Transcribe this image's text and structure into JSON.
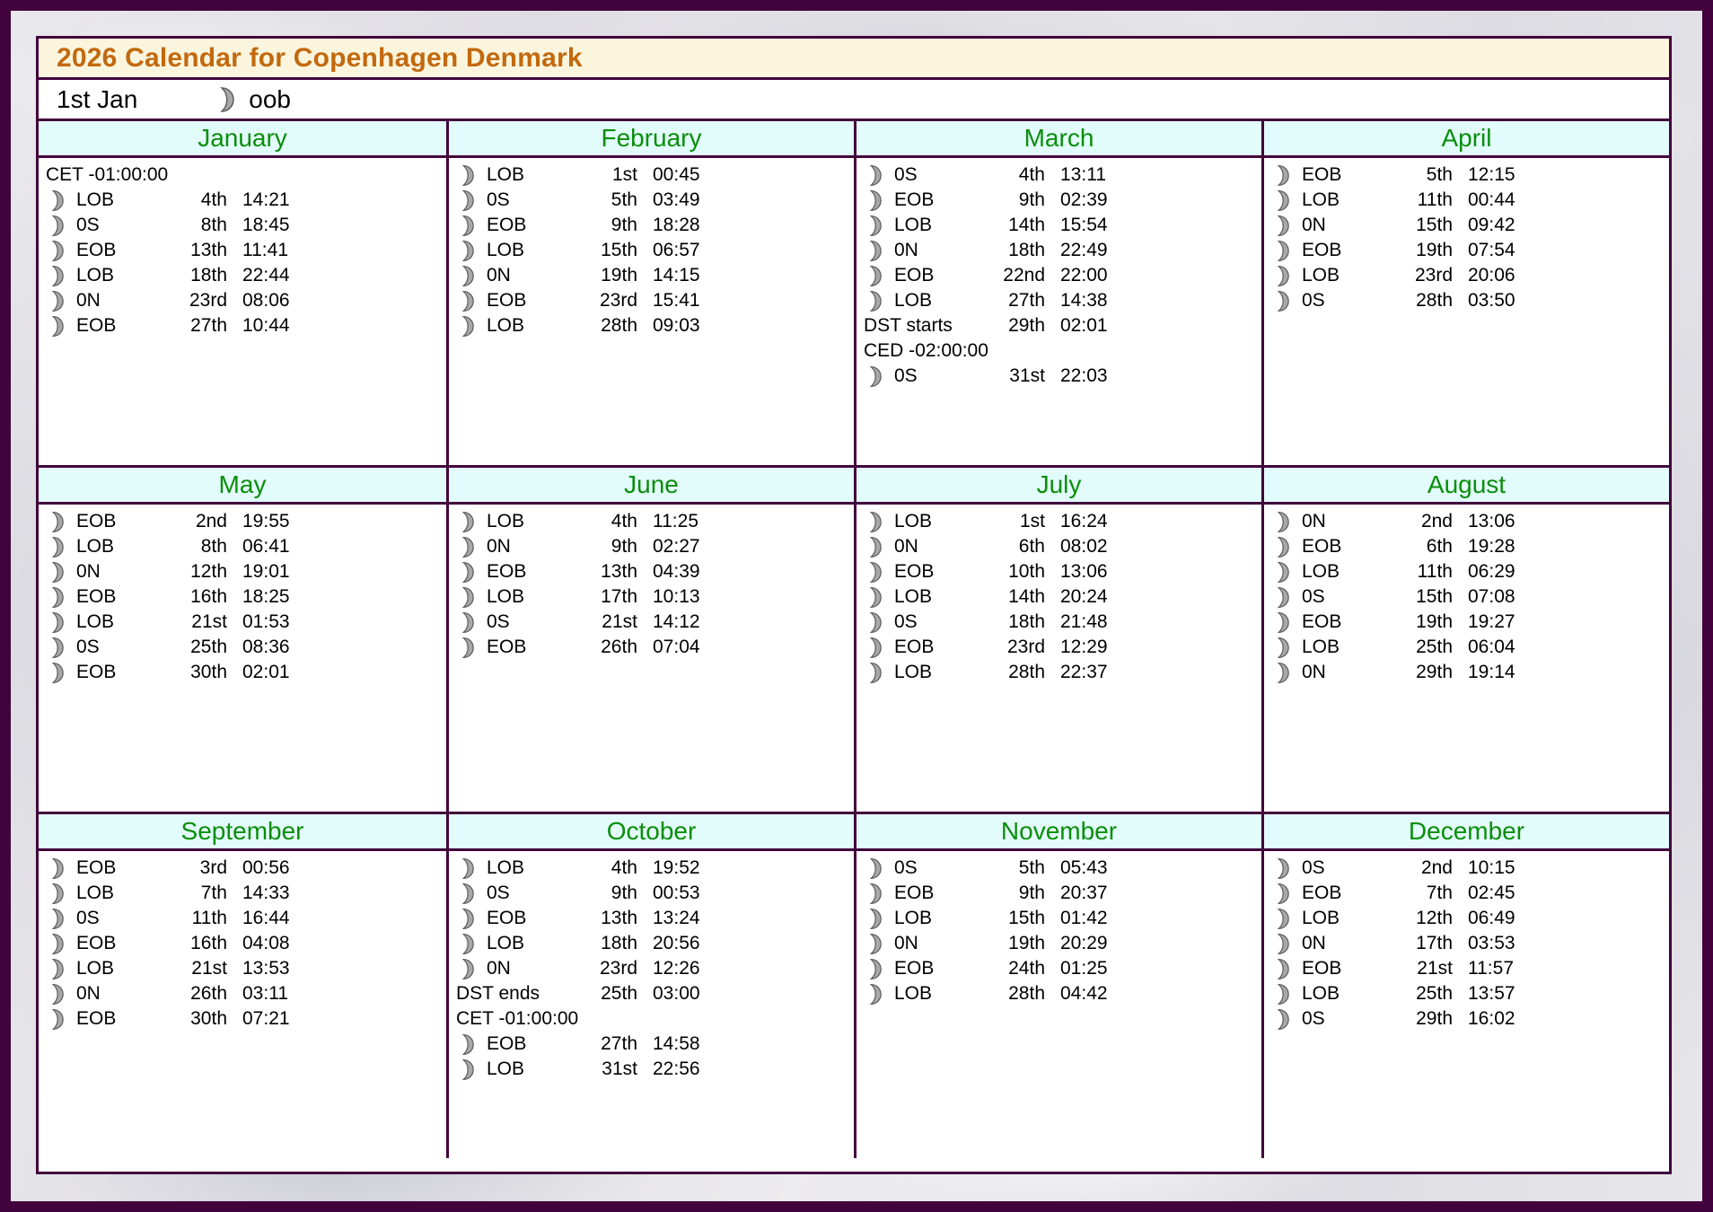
{
  "page": {
    "title": "2026 Calendar for Copenhagen Denmark",
    "subtitle": {
      "date": "1st Jan",
      "icon": "moon-icon",
      "text": "oob"
    }
  },
  "colors": {
    "purple": "#42033d",
    "title_bg": "#fcf5dd",
    "title_color": "#c2690f",
    "header_bg": "#e2fbfb",
    "month_green": "#0a8e0a",
    "moon_fill": "#a8a8a8",
    "moon_stroke": "#5f5f5f",
    "text": "#000000"
  },
  "months": [
    {
      "name": "January",
      "events": [
        {
          "type": "note",
          "label": "CET -01:00:00"
        },
        {
          "type": "moon",
          "label": "LOB",
          "date": "4th",
          "time": "14:21"
        },
        {
          "type": "moon",
          "label": "0S",
          "date": "8th",
          "time": "18:45"
        },
        {
          "type": "moon",
          "label": "EOB",
          "date": "13th",
          "time": "11:41"
        },
        {
          "type": "moon",
          "label": "LOB",
          "date": "18th",
          "time": "22:44"
        },
        {
          "type": "moon",
          "label": "0N",
          "date": "23rd",
          "time": "08:06"
        },
        {
          "type": "moon",
          "label": "EOB",
          "date": "27th",
          "time": "10:44"
        }
      ]
    },
    {
      "name": "February",
      "events": [
        {
          "type": "moon",
          "label": "LOB",
          "date": "1st",
          "time": "00:45"
        },
        {
          "type": "moon",
          "label": "0S",
          "date": "5th",
          "time": "03:49"
        },
        {
          "type": "moon",
          "label": "EOB",
          "date": "9th",
          "time": "18:28"
        },
        {
          "type": "moon",
          "label": "LOB",
          "date": "15th",
          "time": "06:57"
        },
        {
          "type": "moon",
          "label": "0N",
          "date": "19th",
          "time": "14:15"
        },
        {
          "type": "moon",
          "label": "EOB",
          "date": "23rd",
          "time": "15:41"
        },
        {
          "type": "moon",
          "label": "LOB",
          "date": "28th",
          "time": "09:03"
        }
      ]
    },
    {
      "name": "March",
      "events": [
        {
          "type": "moon",
          "label": "0S",
          "date": "4th",
          "time": "13:11"
        },
        {
          "type": "moon",
          "label": "EOB",
          "date": "9th",
          "time": "02:39"
        },
        {
          "type": "moon",
          "label": "LOB",
          "date": "14th",
          "time": "15:54"
        },
        {
          "type": "moon",
          "label": "0N",
          "date": "18th",
          "time": "22:49"
        },
        {
          "type": "moon",
          "label": "EOB",
          "date": "22nd",
          "time": "22:00"
        },
        {
          "type": "moon",
          "label": "LOB",
          "date": "27th",
          "time": "14:38"
        },
        {
          "type": "dst",
          "label": "DST starts",
          "date": "29th",
          "time": "02:01"
        },
        {
          "type": "note",
          "label": "CED -02:00:00"
        },
        {
          "type": "moon",
          "label": "0S",
          "date": "31st",
          "time": "22:03"
        }
      ]
    },
    {
      "name": "April",
      "events": [
        {
          "type": "moon",
          "label": "EOB",
          "date": "5th",
          "time": "12:15"
        },
        {
          "type": "moon",
          "label": "LOB",
          "date": "11th",
          "time": "00:44"
        },
        {
          "type": "moon",
          "label": "0N",
          "date": "15th",
          "time": "09:42"
        },
        {
          "type": "moon",
          "label": "EOB",
          "date": "19th",
          "time": "07:54"
        },
        {
          "type": "moon",
          "label": "LOB",
          "date": "23rd",
          "time": "20:06"
        },
        {
          "type": "moon",
          "label": "0S",
          "date": "28th",
          "time": "03:50"
        }
      ]
    },
    {
      "name": "May",
      "events": [
        {
          "type": "moon",
          "label": "EOB",
          "date": "2nd",
          "time": "19:55"
        },
        {
          "type": "moon",
          "label": "LOB",
          "date": "8th",
          "time": "06:41"
        },
        {
          "type": "moon",
          "label": "0N",
          "date": "12th",
          "time": "19:01"
        },
        {
          "type": "moon",
          "label": "EOB",
          "date": "16th",
          "time": "18:25"
        },
        {
          "type": "moon",
          "label": "LOB",
          "date": "21st",
          "time": "01:53"
        },
        {
          "type": "moon",
          "label": "0S",
          "date": "25th",
          "time": "08:36"
        },
        {
          "type": "moon",
          "label": "EOB",
          "date": "30th",
          "time": "02:01"
        }
      ]
    },
    {
      "name": "June",
      "events": [
        {
          "type": "moon",
          "label": "LOB",
          "date": "4th",
          "time": "11:25"
        },
        {
          "type": "moon",
          "label": "0N",
          "date": "9th",
          "time": "02:27"
        },
        {
          "type": "moon",
          "label": "EOB",
          "date": "13th",
          "time": "04:39"
        },
        {
          "type": "moon",
          "label": "LOB",
          "date": "17th",
          "time": "10:13"
        },
        {
          "type": "moon",
          "label": "0S",
          "date": "21st",
          "time": "14:12"
        },
        {
          "type": "moon",
          "label": "EOB",
          "date": "26th",
          "time": "07:04"
        }
      ]
    },
    {
      "name": "July",
      "events": [
        {
          "type": "moon",
          "label": "LOB",
          "date": "1st",
          "time": "16:24"
        },
        {
          "type": "moon",
          "label": "0N",
          "date": "6th",
          "time": "08:02"
        },
        {
          "type": "moon",
          "label": "EOB",
          "date": "10th",
          "time": "13:06"
        },
        {
          "type": "moon",
          "label": "LOB",
          "date": "14th",
          "time": "20:24"
        },
        {
          "type": "moon",
          "label": "0S",
          "date": "18th",
          "time": "21:48"
        },
        {
          "type": "moon",
          "label": "EOB",
          "date": "23rd",
          "time": "12:29"
        },
        {
          "type": "moon",
          "label": "LOB",
          "date": "28th",
          "time": "22:37"
        }
      ]
    },
    {
      "name": "August",
      "events": [
        {
          "type": "moon",
          "label": "0N",
          "date": "2nd",
          "time": "13:06"
        },
        {
          "type": "moon",
          "label": "EOB",
          "date": "6th",
          "time": "19:28"
        },
        {
          "type": "moon",
          "label": "LOB",
          "date": "11th",
          "time": "06:29"
        },
        {
          "type": "moon",
          "label": "0S",
          "date": "15th",
          "time": "07:08"
        },
        {
          "type": "moon",
          "label": "EOB",
          "date": "19th",
          "time": "19:27"
        },
        {
          "type": "moon",
          "label": "LOB",
          "date": "25th",
          "time": "06:04"
        },
        {
          "type": "moon",
          "label": "0N",
          "date": "29th",
          "time": "19:14"
        }
      ]
    },
    {
      "name": "September",
      "events": [
        {
          "type": "moon",
          "label": "EOB",
          "date": "3rd",
          "time": "00:56"
        },
        {
          "type": "moon",
          "label": "LOB",
          "date": "7th",
          "time": "14:33"
        },
        {
          "type": "moon",
          "label": "0S",
          "date": "11th",
          "time": "16:44"
        },
        {
          "type": "moon",
          "label": "EOB",
          "date": "16th",
          "time": "04:08"
        },
        {
          "type": "moon",
          "label": "LOB",
          "date": "21st",
          "time": "13:53"
        },
        {
          "type": "moon",
          "label": "0N",
          "date": "26th",
          "time": "03:11"
        },
        {
          "type": "moon",
          "label": "EOB",
          "date": "30th",
          "time": "07:21"
        }
      ]
    },
    {
      "name": "October",
      "events": [
        {
          "type": "moon",
          "label": "LOB",
          "date": "4th",
          "time": "19:52"
        },
        {
          "type": "moon",
          "label": "0S",
          "date": "9th",
          "time": "00:53"
        },
        {
          "type": "moon",
          "label": "EOB",
          "date": "13th",
          "time": "13:24"
        },
        {
          "type": "moon",
          "label": "LOB",
          "date": "18th",
          "time": "20:56"
        },
        {
          "type": "moon",
          "label": "0N",
          "date": "23rd",
          "time": "12:26"
        },
        {
          "type": "dst",
          "label": "DST ends",
          "date": "25th",
          "time": "03:00"
        },
        {
          "type": "note",
          "label": "CET -01:00:00"
        },
        {
          "type": "moon",
          "label": "EOB",
          "date": "27th",
          "time": "14:58"
        },
        {
          "type": "moon",
          "label": "LOB",
          "date": "31st",
          "time": "22:56"
        }
      ]
    },
    {
      "name": "November",
      "events": [
        {
          "type": "moon",
          "label": "0S",
          "date": "5th",
          "time": "05:43"
        },
        {
          "type": "moon",
          "label": "EOB",
          "date": "9th",
          "time": "20:37"
        },
        {
          "type": "moon",
          "label": "LOB",
          "date": "15th",
          "time": "01:42"
        },
        {
          "type": "moon",
          "label": "0N",
          "date": "19th",
          "time": "20:29"
        },
        {
          "type": "moon",
          "label": "EOB",
          "date": "24th",
          "time": "01:25"
        },
        {
          "type": "moon",
          "label": "LOB",
          "date": "28th",
          "time": "04:42"
        }
      ]
    },
    {
      "name": "December",
      "events": [
        {
          "type": "moon",
          "label": "0S",
          "date": "2nd",
          "time": "10:15"
        },
        {
          "type": "moon",
          "label": "EOB",
          "date": "7th",
          "time": "02:45"
        },
        {
          "type": "moon",
          "label": "LOB",
          "date": "12th",
          "time": "06:49"
        },
        {
          "type": "moon",
          "label": "0N",
          "date": "17th",
          "time": "03:53"
        },
        {
          "type": "moon",
          "label": "EOB",
          "date": "21st",
          "time": "11:57"
        },
        {
          "type": "moon",
          "label": "LOB",
          "date": "25th",
          "time": "13:57"
        },
        {
          "type": "moon",
          "label": "0S",
          "date": "29th",
          "time": "16:02"
        }
      ]
    }
  ]
}
